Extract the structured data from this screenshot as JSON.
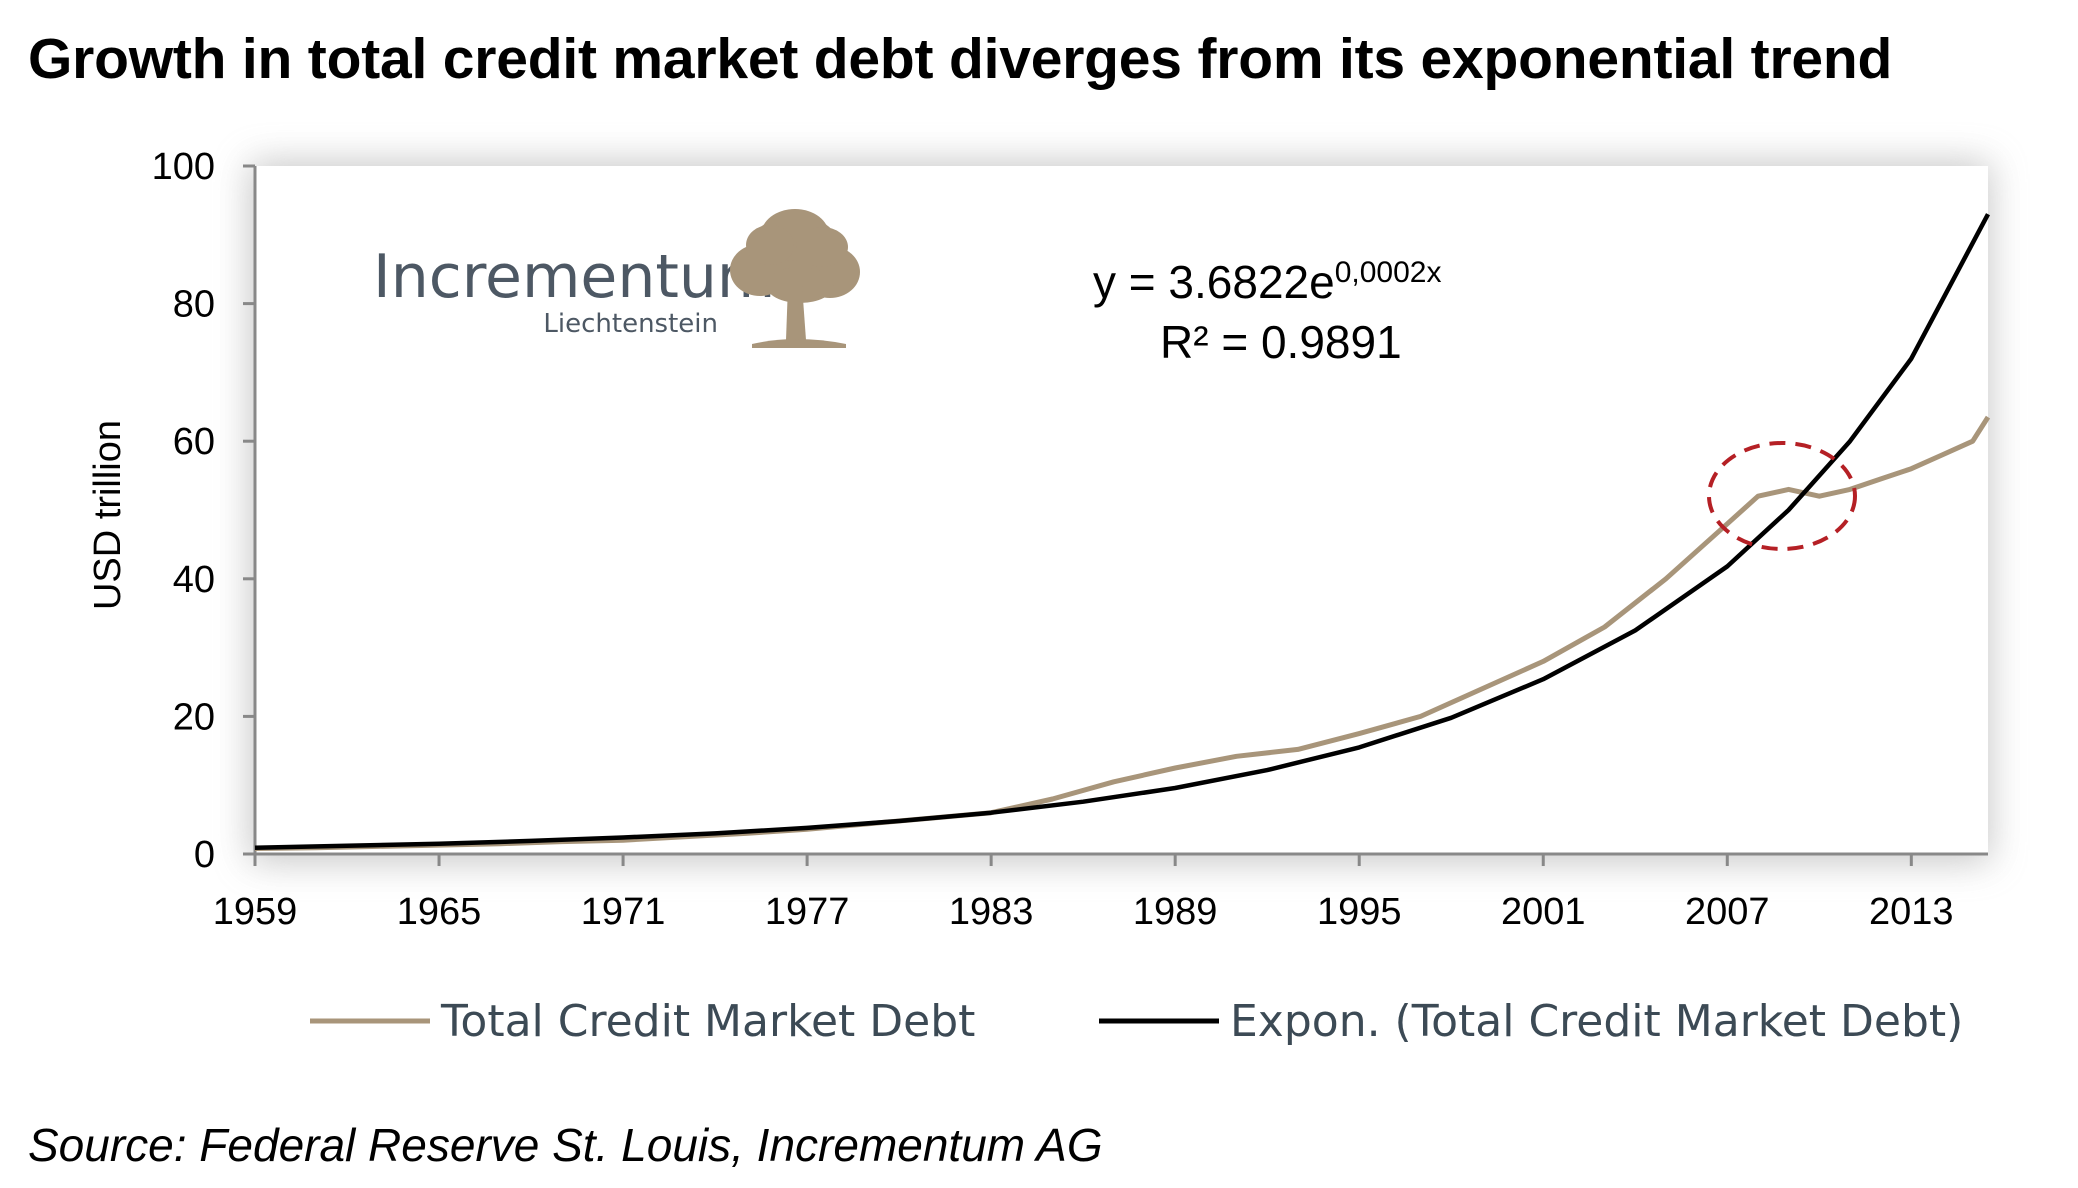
{
  "title": "Growth in total credit market debt diverges from its exponential trend",
  "source": "Source: Federal Reserve St. Louis, Incrementum AG",
  "logo": {
    "word": "Incrementum",
    "sub": "Liechtenstein",
    "icon": "tree-icon"
  },
  "equation": {
    "line1_main": "y  =  3.6822e",
    "line1_exp": "0,0002x",
    "line2": "R²  =  0.9891"
  },
  "colors": {
    "debt": "#a8957a",
    "trend": "#000000",
    "highlight": "#b52025",
    "logo": "#4d5864",
    "tree": "#a8957a"
  },
  "chart_data": {
    "type": "line",
    "ylabel": "USD trillion",
    "xlabel": "",
    "xlim": [
      1959,
      2015.5
    ],
    "ylim": [
      0,
      100
    ],
    "x_ticks": [
      "1959",
      "1965",
      "1971",
      "1977",
      "1983",
      "1989",
      "1995",
      "2001",
      "2007",
      "2013"
    ],
    "y_ticks": [
      "0",
      "20",
      "40",
      "60",
      "80",
      "100"
    ],
    "grid": false,
    "legend_position": "bottom",
    "annotation": "dashed red circle around the 2008-2010 divergence",
    "series": [
      {
        "name": "Total Credit Market Debt",
        "x": [
          1959,
          1961,
          1963,
          1965,
          1967,
          1969,
          1971,
          1973,
          1975,
          1977,
          1979,
          1981,
          1983,
          1985,
          1987,
          1989,
          1991,
          1993,
          1995,
          1997,
          1999,
          2001,
          2003,
          2005,
          2007,
          2008,
          2009,
          2010,
          2011,
          2012,
          2013,
          2014,
          2015,
          2015.5
        ],
        "values": [
          0.8,
          0.9,
          1.1,
          1.3,
          1.5,
          1.8,
          2.0,
          2.5,
          3.0,
          3.6,
          4.4,
          5.2,
          6.0,
          8.0,
          10.5,
          12.5,
          14.2,
          15.2,
          17.5,
          20.0,
          24.0,
          28.0,
          33.0,
          40.0,
          48.0,
          52.0,
          53.0,
          52.0,
          53.0,
          54.5,
          56.0,
          58.0,
          60.0,
          63.5
        ]
      },
      {
        "name": "Expon. (Total Credit Market Debt)",
        "x": [
          1959,
          1962,
          1965,
          1968,
          1971,
          1974,
          1977,
          1980,
          1983,
          1986,
          1989,
          1992,
          1995,
          1998,
          2001,
          2004,
          2007,
          2009,
          2011,
          2013,
          2015.5
        ],
        "values": [
          0.9,
          1.2,
          1.5,
          1.9,
          2.4,
          3.0,
          3.8,
          4.8,
          6.0,
          7.6,
          9.6,
          12.2,
          15.5,
          19.8,
          25.4,
          32.5,
          41.8,
          50.0,
          60.0,
          72.0,
          93.0
        ]
      }
    ]
  }
}
